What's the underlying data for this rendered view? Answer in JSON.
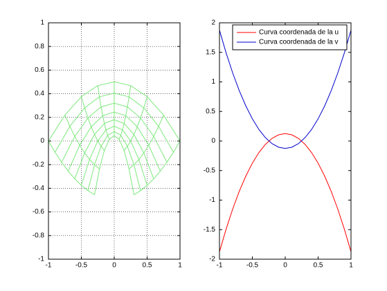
{
  "chart_data": [
    {
      "type": "mesh",
      "color": "#7ee87e",
      "grid": true,
      "xlim": [
        -1,
        1
      ],
      "ylim": [
        -1,
        1
      ],
      "xticks": [
        -1,
        -0.5,
        0,
        0.5,
        1
      ],
      "yticks": [
        -1,
        -0.8,
        -0.6,
        -0.4,
        -0.2,
        0,
        0.2,
        0.4,
        0.6,
        0.8,
        1
      ],
      "x": [
        [
          -0.3,
          -0.225,
          -0.15,
          -0.075,
          0,
          0.075,
          0.15,
          0.225,
          0.3
        ],
        [
          -0.4,
          -0.3,
          -0.2,
          -0.1,
          0,
          0.1,
          0.2,
          0.3,
          0.4
        ],
        [
          -0.5,
          -0.375,
          -0.25,
          -0.125,
          0,
          0.125,
          0.25,
          0.375,
          0.5
        ],
        [
          -0.6,
          -0.45,
          -0.3,
          -0.15,
          0,
          0.15,
          0.3,
          0.45,
          0.6
        ],
        [
          -0.7,
          -0.525,
          -0.35,
          -0.175,
          0,
          0.175,
          0.35,
          0.525,
          0.7
        ],
        [
          -0.8,
          -0.6,
          -0.4,
          -0.2,
          0,
          0.2,
          0.4,
          0.6,
          0.8
        ],
        [
          -0.9,
          -0.675,
          -0.45,
          -0.225,
          0,
          0.225,
          0.45,
          0.675,
          0.9
        ],
        [
          -1,
          -0.75,
          -0.5,
          -0.25,
          0,
          0.25,
          0.5,
          0.75,
          1
        ]
      ],
      "y": [
        [
          -0.455,
          -0.236,
          -0.08,
          0.014,
          0.045,
          0.014,
          -0.08,
          -0.236,
          -0.455
        ],
        [
          -0.42,
          -0.201,
          -0.045,
          0.049,
          0.08,
          0.049,
          -0.045,
          -0.201,
          -0.42
        ],
        [
          -0.375,
          -0.156,
          0,
          0.094,
          0.125,
          0.094,
          0,
          -0.156,
          -0.375
        ],
        [
          -0.32,
          -0.101,
          0.055,
          0.149,
          0.18,
          0.149,
          0.055,
          -0.101,
          -0.32
        ],
        [
          -0.255,
          -0.036,
          0.12,
          0.214,
          0.245,
          0.214,
          0.12,
          -0.036,
          -0.255
        ],
        [
          -0.18,
          0.039,
          0.195,
          0.289,
          0.32,
          0.289,
          0.195,
          0.039,
          -0.18
        ],
        [
          -0.095,
          0.124,
          0.28,
          0.374,
          0.405,
          0.374,
          0.28,
          0.124,
          -0.095
        ],
        [
          0,
          0.219,
          0.375,
          0.469,
          0.5,
          0.469,
          0.375,
          0.219,
          0
        ]
      ]
    },
    {
      "type": "line",
      "grid": false,
      "legend": "upper right",
      "xlim": [
        -1,
        1
      ],
      "ylim": [
        -2,
        2
      ],
      "xticks": [
        -1,
        -0.5,
        0,
        0.5,
        1
      ],
      "yticks": [
        -2,
        -1.5,
        -1,
        -0.5,
        0,
        0.5,
        1,
        1.5,
        2
      ],
      "x": [
        -1,
        -0.9,
        -0.8,
        -0.7,
        -0.6,
        -0.5,
        -0.4,
        -0.3,
        -0.2,
        -0.1,
        0,
        0.1,
        0.2,
        0.3,
        0.4,
        0.5,
        0.6,
        0.7,
        0.8,
        0.9,
        1
      ],
      "series": [
        {
          "name": "Curva coordenada de la u",
          "color": "#ff0000",
          "values": [
            -1.875,
            -1.495,
            -1.155,
            -0.855,
            -0.595,
            -0.375,
            -0.195,
            -0.055,
            0.045,
            0.105,
            0.125,
            0.105,
            0.045,
            -0.055,
            -0.195,
            -0.375,
            -0.595,
            -0.855,
            -1.155,
            -1.495,
            -1.875
          ]
        },
        {
          "name": "Curva coordenada de la v",
          "color": "#0000cc",
          "values": [
            1.875,
            1.495,
            1.155,
            0.855,
            0.595,
            0.375,
            0.195,
            0.055,
            -0.045,
            -0.105,
            -0.125,
            -0.105,
            -0.045,
            0.055,
            0.195,
            0.375,
            0.595,
            0.855,
            1.155,
            1.495,
            1.875
          ]
        }
      ]
    }
  ]
}
